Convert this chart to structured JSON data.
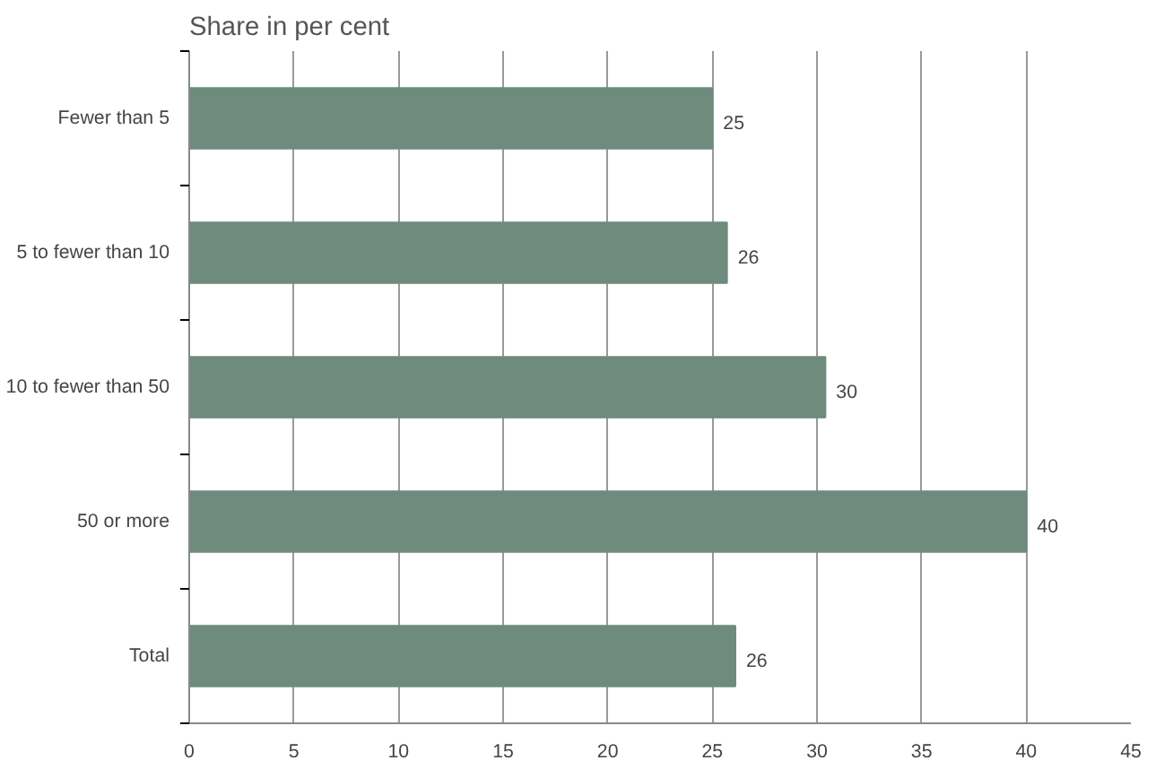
{
  "chart_data": {
    "type": "bar",
    "orientation": "horizontal",
    "title": "Share in per cent",
    "categories": [
      "Fewer than 5",
      "5 to fewer than 10",
      "10 to fewer than 50",
      "50 or more",
      "Total"
    ],
    "values": [
      25,
      25.7,
      30.4,
      40,
      26.1
    ],
    "value_labels": [
      "25",
      "26",
      "30",
      "40",
      "26"
    ],
    "color": "#6e8b7e",
    "xlim": [
      0,
      45
    ],
    "xticks": [
      0,
      5,
      10,
      15,
      20,
      25,
      30,
      35,
      40,
      45
    ],
    "grid": "x"
  }
}
